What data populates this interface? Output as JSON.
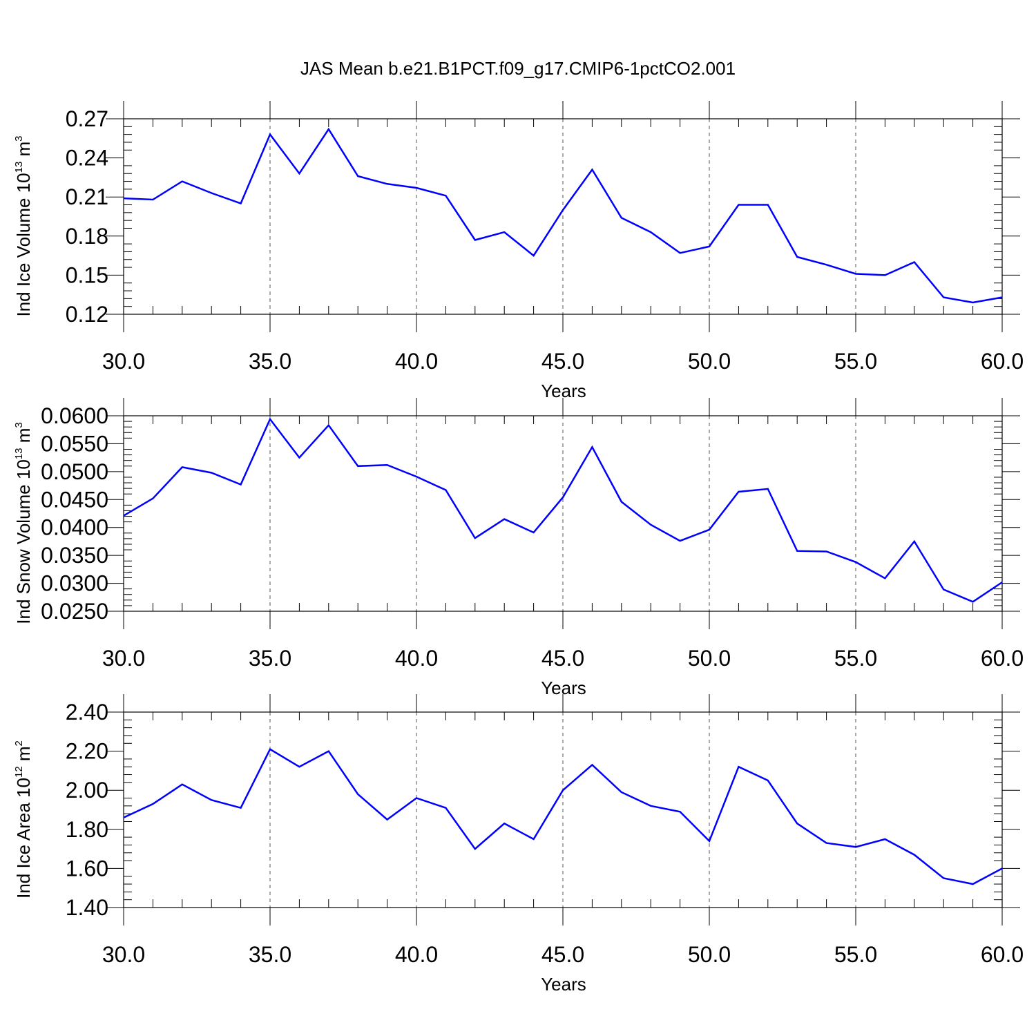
{
  "figure_title": "JAS Mean b.e21.B1PCT.f09_g17.CMIP6-1pctCO2.001",
  "colors": {
    "line": "#0000ff",
    "frame": "#000000",
    "grid": "#555555",
    "background": "#ffffff"
  },
  "chart_data": [
    {
      "type": "line",
      "title": "",
      "xlabel": "Years",
      "ylabel": {
        "text": "Ind Ice Volume 10",
        "exp": "13",
        "unit": " m",
        "unit_exp": "3"
      },
      "xlim": [
        30,
        60
      ],
      "ylim": [
        0.12,
        0.27
      ],
      "xticks": [
        30,
        35,
        40,
        45,
        50,
        55,
        60
      ],
      "xtick_labels": [
        "30.0",
        "35.0",
        "40.0",
        "45.0",
        "50.0",
        "55.0",
        "60.0"
      ],
      "yticks": [
        0.12,
        0.15,
        0.18,
        0.21,
        0.24,
        0.27
      ],
      "ytick_labels": [
        "0.12",
        "0.15",
        "0.18",
        "0.21",
        "0.24",
        "0.27"
      ],
      "grid": "vertical dashed at major x ticks",
      "x": [
        30,
        31,
        32,
        33,
        34,
        35,
        36,
        37,
        38,
        39,
        40,
        41,
        42,
        43,
        44,
        45,
        46,
        47,
        48,
        49,
        50,
        51,
        52,
        53,
        54,
        55,
        56,
        57,
        58,
        59,
        60
      ],
      "y": [
        0.209,
        0.208,
        0.222,
        0.213,
        0.205,
        0.258,
        0.228,
        0.262,
        0.226,
        0.22,
        0.217,
        0.211,
        0.177,
        0.183,
        0.165,
        0.2,
        0.231,
        0.194,
        0.183,
        0.167,
        0.172,
        0.204,
        0.204,
        0.164,
        0.158,
        0.151,
        0.15,
        0.16,
        0.133,
        0.129,
        0.133
      ]
    },
    {
      "type": "line",
      "title": "",
      "xlabel": "Years",
      "ylabel": {
        "text": "Ind Snow Volume 10",
        "exp": "13",
        "unit": " m",
        "unit_exp": "3"
      },
      "xlim": [
        30,
        60
      ],
      "ylim": [
        0.025,
        0.06
      ],
      "xticks": [
        30,
        35,
        40,
        45,
        50,
        55,
        60
      ],
      "xtick_labels": [
        "30.0",
        "35.0",
        "40.0",
        "45.0",
        "50.0",
        "55.0",
        "60.0"
      ],
      "yticks": [
        0.025,
        0.03,
        0.035,
        0.04,
        0.045,
        0.05,
        0.055,
        0.06
      ],
      "ytick_labels": [
        "0.0250",
        "0.0300",
        "0.0350",
        "0.0400",
        "0.0450",
        "0.0500",
        "0.0550",
        "0.0600"
      ],
      "grid": "vertical dashed at major x ticks",
      "x": [
        30,
        31,
        32,
        33,
        34,
        35,
        36,
        37,
        38,
        39,
        40,
        41,
        42,
        43,
        44,
        45,
        46,
        47,
        48,
        49,
        50,
        51,
        52,
        53,
        54,
        55,
        56,
        57,
        58,
        59,
        60
      ],
      "y": [
        0.0421,
        0.0452,
        0.0508,
        0.0498,
        0.0477,
        0.0594,
        0.0525,
        0.0583,
        0.051,
        0.0512,
        0.0491,
        0.0467,
        0.0381,
        0.0415,
        0.0391,
        0.0454,
        0.0544,
        0.0446,
        0.0405,
        0.0376,
        0.0396,
        0.0464,
        0.0469,
        0.0358,
        0.0357,
        0.0338,
        0.0309,
        0.0375,
        0.0289,
        0.0267,
        0.0302
      ]
    },
    {
      "type": "line",
      "title": "",
      "xlabel": "Years",
      "ylabel": {
        "text": "Ind Ice Area 10",
        "exp": "12",
        "unit": " m",
        "unit_exp": "2"
      },
      "xlim": [
        30,
        60
      ],
      "ylim": [
        1.4,
        2.4
      ],
      "xticks": [
        30,
        35,
        40,
        45,
        50,
        55,
        60
      ],
      "xtick_labels": [
        "30.0",
        "35.0",
        "40.0",
        "45.0",
        "50.0",
        "55.0",
        "60.0"
      ],
      "yticks": [
        1.4,
        1.6,
        1.8,
        2.0,
        2.2,
        2.4
      ],
      "ytick_labels": [
        "1.40",
        "1.60",
        "1.80",
        "2.00",
        "2.20",
        "2.40"
      ],
      "grid": "vertical dashed at major x ticks",
      "x": [
        30,
        31,
        32,
        33,
        34,
        35,
        36,
        37,
        38,
        39,
        40,
        41,
        42,
        43,
        44,
        45,
        46,
        47,
        48,
        49,
        50,
        51,
        52,
        53,
        54,
        55,
        56,
        57,
        58,
        59,
        60
      ],
      "y": [
        1.86,
        1.93,
        2.03,
        1.95,
        1.91,
        2.21,
        2.12,
        2.2,
        1.98,
        1.85,
        1.96,
        1.91,
        1.7,
        1.83,
        1.75,
        2.0,
        2.13,
        1.99,
        1.92,
        1.89,
        1.74,
        2.12,
        2.05,
        1.83,
        1.73,
        1.71,
        1.75,
        1.67,
        1.55,
        1.52,
        1.6
      ]
    }
  ]
}
